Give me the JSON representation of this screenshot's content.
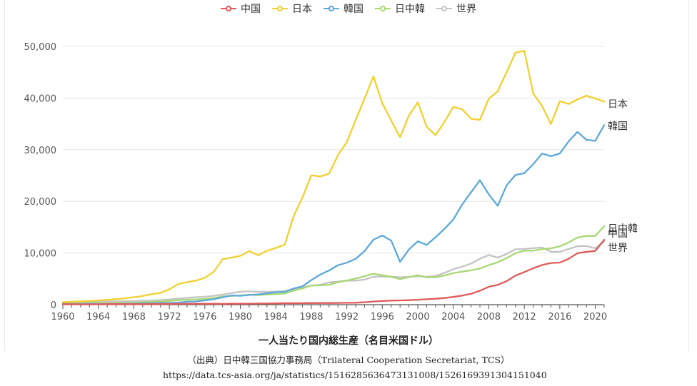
{
  "chart_data": {
    "type": "line",
    "title": "",
    "xlabel": "一人当たり国内総生産（名目米国ドル）",
    "ylabel": "",
    "xlim": [
      1960,
      2021
    ],
    "ylim": [
      0,
      50000
    ],
    "x_ticks": [
      "1960",
      "1964",
      "1968",
      "1972",
      "1976",
      "1980",
      "1984",
      "1988",
      "1992",
      "1996",
      "2000",
      "2004",
      "2008",
      "2012",
      "2016",
      "2020"
    ],
    "y_ticks": [
      "0",
      "10,000",
      "20,000",
      "30,000",
      "40,000",
      "50,000"
    ],
    "legend_position": "top-center",
    "grid": "horizontal",
    "x": [
      1960,
      1961,
      1962,
      1963,
      1964,
      1965,
      1966,
      1967,
      1968,
      1969,
      1970,
      1971,
      1972,
      1973,
      1974,
      1975,
      1976,
      1977,
      1978,
      1979,
      1980,
      1981,
      1982,
      1983,
      1984,
      1985,
      1986,
      1987,
      1988,
      1989,
      1990,
      1991,
      1992,
      1993,
      1994,
      1995,
      1996,
      1997,
      1998,
      1999,
      2000,
      2001,
      2002,
      2003,
      2004,
      2005,
      2006,
      2007,
      2008,
      2009,
      2010,
      2011,
      2012,
      2013,
      2014,
      2015,
      2016,
      2017,
      2018,
      2019,
      2020,
      2021
    ],
    "series": [
      {
        "name": "中国",
        "color": "#e05a5a",
        "end_label": "中国",
        "values": [
          90,
          76,
          70,
          74,
          85,
          98,
          104,
          97,
          91,
          100,
          113,
          119,
          132,
          157,
          160,
          178,
          165,
          185,
          156,
          183,
          195,
          197,
          203,
          225,
          250,
          294,
          282,
          284,
          307,
          311,
          318,
          333,
          366,
          377,
          473,
          610,
          709,
          782,
          829,
          873,
          959,
          1053,
          1149,
          1289,
          1509,
          1753,
          2099,
          2694,
          3468,
          3832,
          4550,
          5618,
          6317,
          7051,
          7679,
          8067,
          8148,
          8879,
          9977,
          10217,
          10409,
          12556
        ]
      },
      {
        "name": "日本",
        "color": "#f2d02e",
        "end_label": "日本",
        "values": [
          479,
          563,
          633,
          717,
          835,
          919,
          1058,
          1228,
          1450,
          1669,
          2037,
          2272,
          2967,
          3997,
          4354,
          4659,
          5198,
          6335,
          8821,
          9105,
          9463,
          10361,
          9578,
          10425,
          10984,
          11585,
          17111,
          20745,
          25052,
          24813,
          25359,
          28925,
          31465,
          35766,
          39934,
          44198,
          38982,
          35635,
          32423,
          36610,
          39169,
          34406,
          32821,
          35387,
          38299,
          37813,
          35991,
          35779,
          39876,
          41309,
          44968,
          48760,
          49145,
          40898,
          38475,
          34961,
          39375,
          38834,
          39727,
          40458,
          39918,
          39313
        ]
      },
      {
        "name": "韓国",
        "color": "#5ba8dd",
        "end_label": "韓国",
        "values": [
          158,
          93,
          106,
          146,
          124,
          108,
          133,
          161,
          198,
          243,
          279,
          301,
          324,
          407,
          563,
          616,
          834,
          1055,
          1405,
          1783,
          1715,
          1883,
          1993,
          2199,
          2413,
          2482,
          3121,
          3554,
          4749,
          5817,
          6610,
          7637,
          8127,
          8885,
          10385,
          12565,
          13403,
          12398,
          8282,
          10672,
          12263,
          11563,
          13049,
          14672,
          16496,
          19402,
          21743,
          24086,
          21350,
          19144,
          23087,
          25100,
          25459,
          27180,
          29253,
          28737,
          29274,
          31601,
          33447,
          31902,
          31721,
          34758
        ]
      },
      {
        "name": "日中韓",
        "color": "#a8d873",
        "end_label": "日中韓",
        "values": [
          240,
          220,
          230,
          250,
          270,
          290,
          320,
          350,
          400,
          450,
          520,
          580,
          700,
          890,
          960,
          1020,
          1100,
          1290,
          1600,
          1700,
          1800,
          1900,
          1850,
          1950,
          2050,
          2150,
          2700,
          3150,
          3700,
          3750,
          3850,
          4350,
          4650,
          5050,
          5500,
          6000,
          5700,
          5400,
          4950,
          5350,
          5700,
          5300,
          5300,
          5650,
          6100,
          6400,
          6650,
          7000,
          7650,
          8200,
          9000,
          9950,
          10450,
          10450,
          10750,
          10900,
          11300,
          12050,
          13000,
          13300,
          13300,
          15200
        ]
      },
      {
        "name": "世界",
        "color": "#c4c4c4",
        "end_label": "世界",
        "values": [
          450,
          470,
          490,
          520,
          560,
          600,
          640,
          670,
          700,
          760,
          810,
          880,
          990,
          1180,
          1330,
          1450,
          1540,
          1710,
          1950,
          2230,
          2520,
          2570,
          2490,
          2490,
          2530,
          2620,
          2980,
          3370,
          3670,
          3850,
          4320,
          4460,
          4670,
          4650,
          4860,
          5400,
          5450,
          5400,
          5300,
          5390,
          5500,
          5400,
          5550,
          6150,
          6880,
          7360,
          7960,
          8880,
          9620,
          9110,
          9810,
          10720,
          10790,
          10920,
          11080,
          10250,
          10230,
          10770,
          11310,
          11360,
          10930,
          12260
        ]
      }
    ]
  },
  "source_line": "（出典）日中韓三国協力事務局（Trilateral Cooperation Secretariat, TCS）",
  "source_url": "https://data.tcs-asia.org/ja/statistics/1516285636473131008/1526169391304151040"
}
